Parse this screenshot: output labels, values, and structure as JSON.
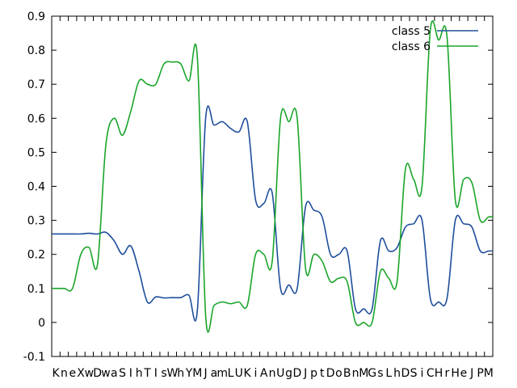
{
  "chart_data": {
    "type": "line",
    "title": "",
    "xlabel": "",
    "ylabel": "",
    "ylim": [
      -0.1,
      0.9
    ],
    "yticks": [
      "-0.1",
      "0",
      "0.1",
      "0.2",
      "0.3",
      "0.4",
      "0.5",
      "0.6",
      "0.7",
      "0.8",
      "0.9"
    ],
    "grid": false,
    "legend_position": "top-right",
    "categories": [
      "K",
      "n",
      "e",
      "X",
      "w",
      "D",
      "w",
      "a",
      "S",
      "I",
      "h",
      "T",
      "I",
      "s",
      "W",
      "h",
      "Y",
      "M",
      "J",
      "a",
      "m",
      "L",
      "U",
      "K",
      "i",
      "A",
      "n",
      "U",
      "g",
      "D",
      "J",
      "p",
      "t",
      "D",
      "o",
      "B",
      "n",
      "M",
      "G",
      "s",
      "L",
      "h",
      "D",
      "S",
      "i",
      "C",
      "H",
      "r",
      "H",
      "e",
      "J",
      "P",
      "M"
    ],
    "series": [
      {
        "name": "class 5",
        "color": "#1f4e9c",
        "values": [
          0.26,
          0.26,
          0.26,
          0.26,
          0.262,
          0.26,
          0.265,
          0.24,
          0.2,
          0.225,
          0.15,
          0.06,
          0.075,
          0.072,
          0.073,
          0.073,
          0.08,
          0.035,
          0.6,
          0.58,
          0.59,
          0.57,
          0.56,
          0.59,
          0.36,
          0.35,
          0.38,
          0.1,
          0.11,
          0.1,
          0.34,
          0.33,
          0.31,
          0.2,
          0.2,
          0.21,
          0.04,
          0.04,
          0.04,
          0.24,
          0.21,
          0.22,
          0.28,
          0.29,
          0.3,
          0.07,
          0.06,
          0.07,
          0.3,
          0.29,
          0.28,
          0.21,
          0.21
        ]
      },
      {
        "name": "class 6",
        "color": "#1aa52a",
        "values": [
          0.1,
          0.1,
          0.1,
          0.2,
          0.22,
          0.17,
          0.52,
          0.6,
          0.55,
          0.62,
          0.71,
          0.7,
          0.7,
          0.76,
          0.765,
          0.76,
          0.71,
          0.78,
          0.02,
          0.05,
          0.06,
          0.055,
          0.06,
          0.05,
          0.2,
          0.2,
          0.18,
          0.6,
          0.59,
          0.6,
          0.16,
          0.2,
          0.18,
          0.12,
          0.13,
          0.12,
          0.0,
          0.0,
          0.0,
          0.15,
          0.13,
          0.12,
          0.45,
          0.42,
          0.4,
          0.86,
          0.83,
          0.84,
          0.36,
          0.42,
          0.41,
          0.3,
          0.31
        ]
      }
    ]
  }
}
